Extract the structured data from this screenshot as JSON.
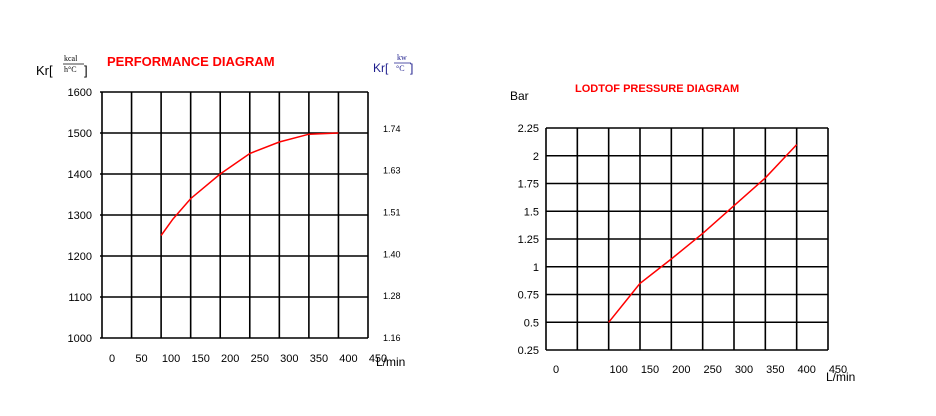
{
  "chart_data": [
    {
      "type": "line",
      "title": "PERFORMANCE DIAGRAM",
      "ylabel": "Kr[",
      "ylabel_unit_num": "kcal",
      "ylabel_unit_den": "h°C",
      "ylabel_close": "]",
      "y2label": "Kr[",
      "y2label_unit_num": "kw",
      "y2label_unit_den": "°C",
      "y2label_close": "]",
      "xlabel": "L/min",
      "xlim": [
        0,
        450
      ],
      "ylim": [
        1000,
        1600
      ],
      "x_ticks": [
        "0",
        "50",
        "100",
        "150",
        "200",
        "250",
        "300",
        "350",
        "400",
        "450"
      ],
      "y_ticks": [
        "1600",
        "1500",
        "1400",
        "1300",
        "1200",
        "1100",
        "1000"
      ],
      "y2_ticks": [
        "1.74",
        "1.63",
        "1.51",
        "1.40",
        "1.28",
        "1.16"
      ],
      "series": [
        {
          "x": [
            100,
            120,
            150,
            200,
            250,
            300,
            350,
            400
          ],
          "y": [
            1250,
            1290,
            1340,
            1400,
            1450,
            1478,
            1497,
            1500
          ]
        }
      ]
    },
    {
      "type": "line",
      "title": "LODTOF PRESSURE DIAGRAM",
      "ylabel": "Bar",
      "xlabel": "L/min",
      "xlim": [
        0,
        450
      ],
      "ylim": [
        0.25,
        2.25
      ],
      "x_ticks": [
        "0",
        "100",
        "150",
        "200",
        "250",
        "300",
        "350",
        "400",
        "450"
      ],
      "y_ticks": [
        "2.25",
        "2",
        "1.75",
        "1.5",
        "1.25",
        "1",
        "0.75",
        "0.5",
        "0.25"
      ],
      "series": [
        {
          "x": [
            100,
            150,
            200,
            250,
            300,
            350,
            400
          ],
          "y": [
            0.5,
            0.85,
            1.07,
            1.3,
            1.55,
            1.8,
            2.1
          ]
        }
      ]
    }
  ]
}
